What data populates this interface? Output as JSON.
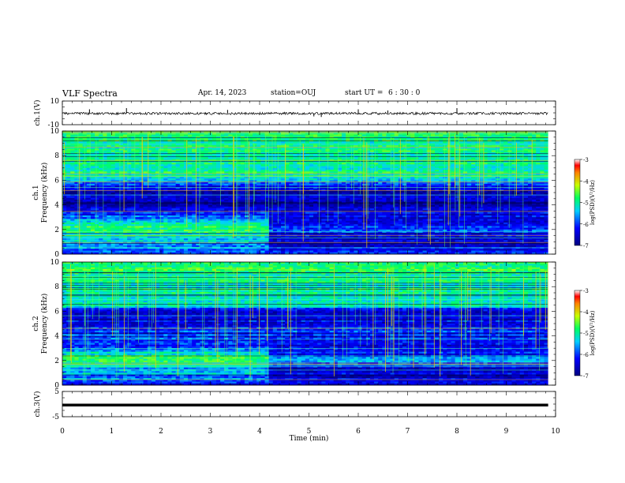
{
  "header": {
    "title": "VLF Spectra",
    "date": "Apr. 14, 2023",
    "station": "station=OUJ",
    "start_label": "start  UT =",
    "start_time": "6 : 30 : 0"
  },
  "colors": {
    "spectrum_low": "#00008b",
    "spectrum_mid": "#00ff80",
    "spectrum_high": "#ff0000",
    "trace": "#000000"
  },
  "chart_data": [
    {
      "type": "line",
      "name": "ch1-waveform",
      "ylabel": "ch.1(V)",
      "ylim": [
        -10,
        10
      ],
      "ytick_labels": [
        "10",
        "-10"
      ],
      "x_range": [
        0,
        10
      ],
      "baseline": -0.5,
      "spikes": [
        {
          "x": 0.55,
          "y": 3
        },
        {
          "x": 1.3,
          "y": 4
        },
        {
          "x": 3.35,
          "y": 2.5
        },
        {
          "x": 5.1,
          "y": -3
        },
        {
          "x": 5.25,
          "y": -3.5
        },
        {
          "x": 6.0,
          "y": 3
        },
        {
          "x": 6.6,
          "y": 2
        },
        {
          "x": 8.0,
          "y": 4
        }
      ]
    },
    {
      "type": "heatmap",
      "name": "ch1-spectrogram",
      "ylabel": "ch.1 Frequency (kHz)",
      "ylim": [
        0,
        10
      ],
      "ytick_labels": [
        "0",
        "2",
        "4",
        "6",
        "8",
        "10"
      ],
      "xlim": [
        0,
        10
      ],
      "data_end_min": 9.85,
      "change_time_min": 4.2,
      "colorbar": {
        "label": "log(PSD)(V²/Hz)",
        "range": [
          -7,
          -3
        ],
        "tick_labels": [
          "-3",
          "-4",
          "-5",
          "-6",
          "-7"
        ]
      },
      "profile_kHz": [
        {
          "f": 0.0,
          "v": -6.2
        },
        {
          "f": 0.5,
          "v": -5.6
        },
        {
          "f": 1.0,
          "v": -5.4
        },
        {
          "f": 1.5,
          "v": -5.2
        },
        {
          "f": 2.0,
          "v": -4.9
        },
        {
          "f": 2.5,
          "v": -4.9
        },
        {
          "f": 3.0,
          "v": -5.8
        },
        {
          "f": 3.5,
          "v": -6.3
        },
        {
          "f": 4.0,
          "v": -6.6
        },
        {
          "f": 4.5,
          "v": -6.4
        },
        {
          "f": 5.0,
          "v": -6.7
        },
        {
          "f": 5.5,
          "v": -6.3
        },
        {
          "f": 6.0,
          "v": -5.5
        },
        {
          "f": 6.5,
          "v": -5.1
        },
        {
          "f": 7.0,
          "v": -5.0
        },
        {
          "f": 8.0,
          "v": -5.0
        },
        {
          "f": 9.0,
          "v": -4.9
        },
        {
          "f": 10.0,
          "v": -4.9
        }
      ],
      "late_profile_kHz": [
        {
          "f": 0.0,
          "v": -6.2
        },
        {
          "f": 0.5,
          "v": -6.3
        },
        {
          "f": 1.0,
          "v": -6.5
        },
        {
          "f": 1.5,
          "v": -6.4
        },
        {
          "f": 2.0,
          "v": -6.0
        },
        {
          "f": 2.5,
          "v": -6.2
        },
        {
          "f": 3.0,
          "v": -6.3
        },
        {
          "f": 3.5,
          "v": -6.4
        },
        {
          "f": 4.0,
          "v": -6.6
        }
      ]
    },
    {
      "type": "heatmap",
      "name": "ch2-spectrogram",
      "ylabel": "ch.2 Frequency (kHz)",
      "ylim": [
        0,
        10
      ],
      "ytick_labels": [
        "0",
        "2",
        "4",
        "6",
        "8",
        "10"
      ],
      "xlim": [
        0,
        10
      ],
      "data_end_min": 9.85,
      "change_time_min": 4.2,
      "colorbar": {
        "label": "log(PSD)(V²/Hz)",
        "range": [
          -7,
          -3
        ],
        "tick_labels": [
          "-3",
          "-4",
          "-5",
          "-6",
          "-7"
        ]
      },
      "profile_kHz": [
        {
          "f": 0.0,
          "v": -6.3
        },
        {
          "f": 0.5,
          "v": -5.7
        },
        {
          "f": 1.0,
          "v": -5.5
        },
        {
          "f": 1.5,
          "v": -5.3
        },
        {
          "f": 2.0,
          "v": -4.9
        },
        {
          "f": 2.5,
          "v": -5.0
        },
        {
          "f": 3.0,
          "v": -5.9
        },
        {
          "f": 3.5,
          "v": -6.1
        },
        {
          "f": 4.0,
          "v": -6.0
        },
        {
          "f": 4.5,
          "v": -6.1
        },
        {
          "f": 5.0,
          "v": -6.3
        },
        {
          "f": 5.5,
          "v": -6.2
        },
        {
          "f": 6.0,
          "v": -6.4
        },
        {
          "f": 6.5,
          "v": -5.2
        },
        {
          "f": 7.0,
          "v": -5.0
        },
        {
          "f": 8.0,
          "v": -5.0
        },
        {
          "f": 9.0,
          "v": -4.9
        },
        {
          "f": 10.0,
          "v": -4.9
        }
      ],
      "late_profile_kHz": [
        {
          "f": 0.0,
          "v": -6.3
        },
        {
          "f": 0.5,
          "v": -6.4
        },
        {
          "f": 1.0,
          "v": -6.5
        },
        {
          "f": 1.5,
          "v": -6.3
        },
        {
          "f": 2.0,
          "v": -5.6
        },
        {
          "f": 2.5,
          "v": -6.1
        },
        {
          "f": 3.0,
          "v": -6.2
        },
        {
          "f": 3.5,
          "v": -6.3
        },
        {
          "f": 4.0,
          "v": -6.2
        }
      ]
    },
    {
      "type": "line",
      "name": "ch3-waveform",
      "ylabel": "ch.3(V)",
      "ylim": [
        -5,
        5
      ],
      "ytick_labels": [
        "5",
        "-5"
      ],
      "x_range": [
        0,
        10
      ],
      "baseline": -0.4,
      "xlabel": "Time (min)",
      "xtick_labels": [
        "0",
        "1",
        "2",
        "3",
        "4",
        "5",
        "6",
        "7",
        "8",
        "9",
        "10"
      ]
    }
  ]
}
